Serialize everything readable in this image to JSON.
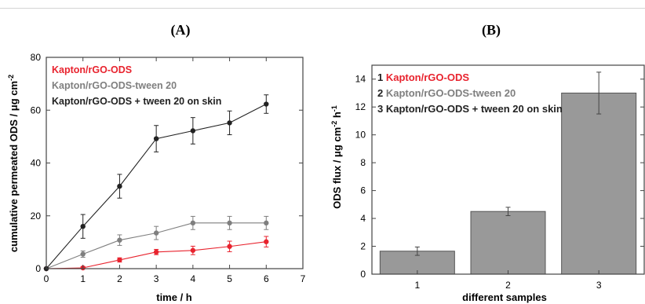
{
  "chart_data": [
    {
      "panel_label": "(A)",
      "type": "line",
      "xlabel": "time / h",
      "ylabel": "cumulative permeated ODS / μg cm",
      "ylabel_sup": "-2",
      "xlim": [
        0,
        7
      ],
      "ylim": [
        0,
        80
      ],
      "xticks": [
        "0",
        "1",
        "2",
        "3",
        "4",
        "5",
        "6",
        "7"
      ],
      "yticks": [
        "0",
        "20",
        "40",
        "60",
        "80"
      ],
      "legend_position": "top-left",
      "series": [
        {
          "name": "Kapton/rGO-ODS",
          "color": "#e8232e",
          "x": [
            0,
            1,
            2,
            3,
            4,
            5,
            6
          ],
          "y": [
            0,
            0.3,
            3.3,
            6.3,
            6.9,
            8.4,
            10.2
          ],
          "err": [
            0,
            0.5,
            0.8,
            1.0,
            1.6,
            2.0,
            2.0
          ]
        },
        {
          "name": "Kapton/rGO-ODS-tween 20",
          "color": "#7f7f7f",
          "x": [
            0,
            1,
            2,
            3,
            4,
            5,
            6
          ],
          "y": [
            0,
            5.5,
            10.8,
            13.5,
            17.3,
            17.3,
            17.3
          ],
          "err": [
            0,
            1.2,
            2.0,
            2.5,
            2.5,
            2.5,
            2.5
          ]
        },
        {
          "name": "Kapton/rGO-ODS + tween 20 on skin",
          "color": "#222222",
          "x": [
            0,
            1,
            2,
            3,
            4,
            5,
            6
          ],
          "y": [
            0,
            16.0,
            31.2,
            49.2,
            52.2,
            55.2,
            62.3
          ],
          "err": [
            0,
            4.5,
            4.5,
            5.0,
            5.0,
            4.5,
            3.5
          ]
        }
      ]
    },
    {
      "panel_label": "(B)",
      "type": "bar",
      "xlabel": "different samples",
      "ylabel": "ODS flux / μg cm",
      "ylabel_sup1": "-2",
      "ylabel_tail": " h",
      "ylabel_sup2": "-1",
      "categories": [
        "1",
        "2",
        "3"
      ],
      "values": [
        1.65,
        4.5,
        13.0
      ],
      "errors": [
        0.3,
        0.3,
        1.5
      ],
      "bar_color": "#999999",
      "ylim": [
        0,
        15
      ],
      "yticks": [
        "0",
        "2",
        "4",
        "6",
        "8",
        "10",
        "12",
        "14"
      ],
      "legend_position": "top-left",
      "legend": [
        {
          "num": "1",
          "label": "Kapton/rGO-ODS",
          "color": "#e8232e"
        },
        {
          "num": "2",
          "label": "Kapton/rGO-ODS-tween 20",
          "color": "#7f7f7f"
        },
        {
          "num": "3",
          "label": "Kapton/rGO-ODS + tween 20 on skin",
          "color": "#222222"
        }
      ]
    }
  ]
}
